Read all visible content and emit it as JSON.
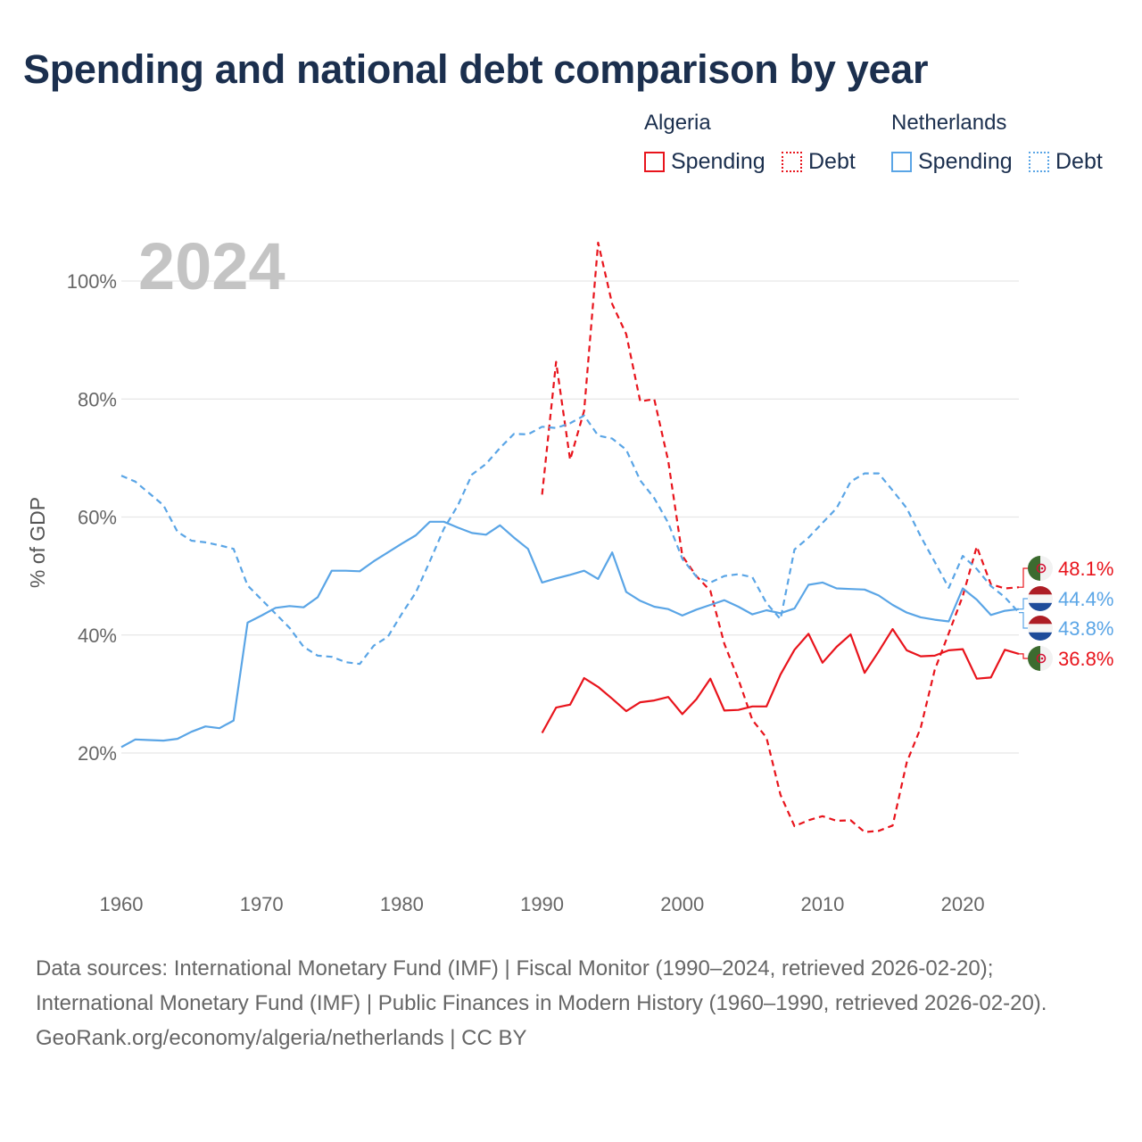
{
  "title": "Spending and national debt comparison by year",
  "legend": {
    "groups": [
      {
        "country": "Algeria",
        "color": "#e8141c",
        "items": [
          {
            "label": "Spending",
            "style": "solid"
          },
          {
            "label": "Debt",
            "style": "dotted"
          }
        ]
      },
      {
        "country": "Netherlands",
        "color": "#5aa5e6",
        "items": [
          {
            "label": "Spending",
            "style": "solid"
          },
          {
            "label": "Debt",
            "style": "dotted"
          }
        ]
      }
    ]
  },
  "year_label": "2024",
  "sources": {
    "line1": "Data sources: International Monetary Fund (IMF) | Fiscal Monitor (1990–2024, retrieved 2026-02-20); International Monetary Fund (IMF) | Public Finances in Modern History (1960–1990, retrieved 2026-02-20).",
    "line2": "GeoRank.org/economy/algeria/netherlands | CC BY"
  },
  "end_labels": [
    {
      "text": "48.1%",
      "color": "#e8141c",
      "flag": "algeria-flag-icon",
      "value": 48.1
    },
    {
      "text": "44.4%",
      "color": "#5aa5e6",
      "flag": "netherlands-flag-icon",
      "value": 44.4
    },
    {
      "text": "43.8%",
      "color": "#5aa5e6",
      "flag": "netherlands-flag-icon",
      "value": 43.8
    },
    {
      "text": "36.8%",
      "color": "#e8141c",
      "flag": "algeria-flag-icon",
      "value": 36.8
    }
  ],
  "chart_data": {
    "type": "line",
    "title": "Spending and national debt comparison by year",
    "xlabel": "",
    "ylabel": "% of GDP",
    "xlim": [
      1960,
      2024
    ],
    "ylim": [
      0,
      108
    ],
    "x_ticks": [
      1960,
      1970,
      1980,
      1990,
      2000,
      2010,
      2020
    ],
    "y_ticks": [
      20,
      40,
      60,
      80,
      100
    ],
    "y_tick_labels": [
      "20%",
      "40%",
      "60%",
      "80%",
      "100%"
    ],
    "grid": true,
    "legend_position": "top-right",
    "series": [
      {
        "name": "Algeria Spending",
        "country": "Algeria",
        "metric": "Spending",
        "color": "#e8141c",
        "dash": "solid",
        "x": [
          1990,
          1991,
          1992,
          1993,
          1994,
          1995,
          1996,
          1997,
          1998,
          1999,
          2000,
          2001,
          2002,
          2003,
          2004,
          2005,
          2006,
          2007,
          2008,
          2009,
          2010,
          2011,
          2012,
          2013,
          2014,
          2015,
          2016,
          2017,
          2018,
          2019,
          2020,
          2021,
          2022,
          2023,
          2024
        ],
        "values": [
          23.4,
          27.7,
          28.2,
          32.7,
          31.2,
          29.2,
          27.1,
          28.6,
          28.9,
          29.5,
          26.6,
          29.1,
          32.6,
          27.2,
          27.3,
          27.9,
          27.9,
          33.3,
          37.5,
          40.2,
          35.3,
          38.0,
          40.1,
          33.6,
          37.2,
          41.0,
          37.4,
          36.4,
          36.5,
          37.4,
          37.6,
          32.6,
          32.8,
          37.5,
          36.8
        ]
      },
      {
        "name": "Algeria Debt",
        "country": "Algeria",
        "metric": "Debt",
        "color": "#e8141c",
        "dash": "dashed",
        "x": [
          1990,
          1991,
          1992,
          1993,
          1994,
          1995,
          1996,
          1997,
          1998,
          1999,
          2000,
          2001,
          2002,
          2003,
          2004,
          2005,
          2006,
          2007,
          2008,
          2009,
          2010,
          2011,
          2012,
          2013,
          2014,
          2015,
          2016,
          2017,
          2018,
          2019,
          2020,
          2021,
          2022,
          2023,
          2024
        ],
        "values": [
          63.8,
          86.3,
          69.7,
          78.0,
          106.5,
          96.1,
          91.0,
          79.6,
          80.0,
          69.5,
          53.4,
          50.0,
          47.5,
          38.5,
          32.5,
          25.6,
          22.6,
          12.9,
          7.6,
          8.6,
          9.3,
          8.5,
          8.6,
          6.6,
          6.8,
          7.7,
          18.4,
          24.3,
          34.1,
          40.3,
          46.6,
          55.0,
          48.6,
          47.9,
          48.1
        ]
      },
      {
        "name": "Netherlands Spending",
        "country": "Netherlands",
        "metric": "Spending",
        "color": "#5aa5e6",
        "dash": "solid",
        "x": [
          1960,
          1961,
          1962,
          1963,
          1964,
          1965,
          1966,
          1967,
          1968,
          1969,
          1970,
          1971,
          1972,
          1973,
          1974,
          1975,
          1976,
          1977,
          1978,
          1979,
          1980,
          1981,
          1982,
          1983,
          1984,
          1985,
          1986,
          1987,
          1988,
          1989,
          1990,
          1991,
          1992,
          1993,
          1994,
          1995,
          1996,
          1997,
          1998,
          1999,
          2000,
          2001,
          2002,
          2003,
          2004,
          2005,
          2006,
          2007,
          2008,
          2009,
          2010,
          2011,
          2012,
          2013,
          2014,
          2015,
          2016,
          2017,
          2018,
          2019,
          2020,
          2021,
          2022,
          2023,
          2024
        ],
        "values": [
          21.0,
          22.3,
          22.2,
          22.1,
          22.4,
          23.6,
          24.5,
          24.2,
          25.5,
          42.1,
          43.3,
          44.6,
          44.9,
          44.7,
          46.4,
          50.9,
          50.9,
          50.8,
          52.5,
          54.0,
          55.5,
          56.9,
          59.2,
          59.2,
          58.2,
          57.3,
          57.0,
          58.6,
          56.5,
          54.6,
          48.9,
          49.6,
          50.2,
          50.9,
          49.5,
          54.0,
          47.3,
          45.8,
          44.8,
          44.4,
          43.3,
          44.3,
          45.1,
          45.9,
          44.8,
          43.5,
          44.2,
          43.7,
          44.5,
          48.5,
          48.9,
          47.9,
          47.8,
          47.7,
          46.7,
          45.1,
          43.8,
          43.0,
          42.6,
          42.3,
          47.9,
          46.0,
          43.4,
          44.1,
          44.4
        ]
      },
      {
        "name": "Netherlands Debt",
        "country": "Netherlands",
        "metric": "Debt",
        "color": "#5aa5e6",
        "dash": "dashed",
        "x": [
          1960,
          1961,
          1962,
          1963,
          1964,
          1965,
          1966,
          1967,
          1968,
          1969,
          1970,
          1971,
          1972,
          1973,
          1974,
          1975,
          1976,
          1977,
          1978,
          1979,
          1980,
          1981,
          1982,
          1983,
          1984,
          1985,
          1986,
          1987,
          1988,
          1989,
          1990,
          1991,
          1992,
          1993,
          1994,
          1995,
          1996,
          1997,
          1998,
          1999,
          2000,
          2001,
          2002,
          2003,
          2004,
          2005,
          2006,
          2007,
          2008,
          2009,
          2010,
          2011,
          2012,
          2013,
          2014,
          2015,
          2016,
          2017,
          2018,
          2019,
          2020,
          2021,
          2022,
          2023,
          2024
        ],
        "values": [
          67.0,
          66.0,
          64.0,
          62.0,
          57.5,
          56.0,
          55.7,
          55.2,
          54.6,
          48.4,
          46.0,
          43.6,
          41.2,
          38.0,
          36.5,
          36.3,
          35.4,
          35.1,
          38.2,
          39.7,
          43.6,
          47.2,
          52.5,
          58.0,
          62.0,
          67.2,
          69.0,
          71.7,
          74.1,
          74.0,
          75.3,
          75.1,
          75.9,
          77.2,
          73.8,
          73.3,
          71.4,
          66.2,
          63.2,
          59.0,
          52.9,
          49.9,
          48.9,
          50.0,
          50.3,
          49.8,
          45.4,
          42.7,
          54.5,
          56.5,
          59.0,
          61.5,
          66.0,
          67.4,
          67.4,
          64.5,
          61.5,
          56.7,
          52.4,
          48.0,
          53.4,
          51.2,
          48.3,
          46.4,
          43.8
        ]
      }
    ]
  }
}
